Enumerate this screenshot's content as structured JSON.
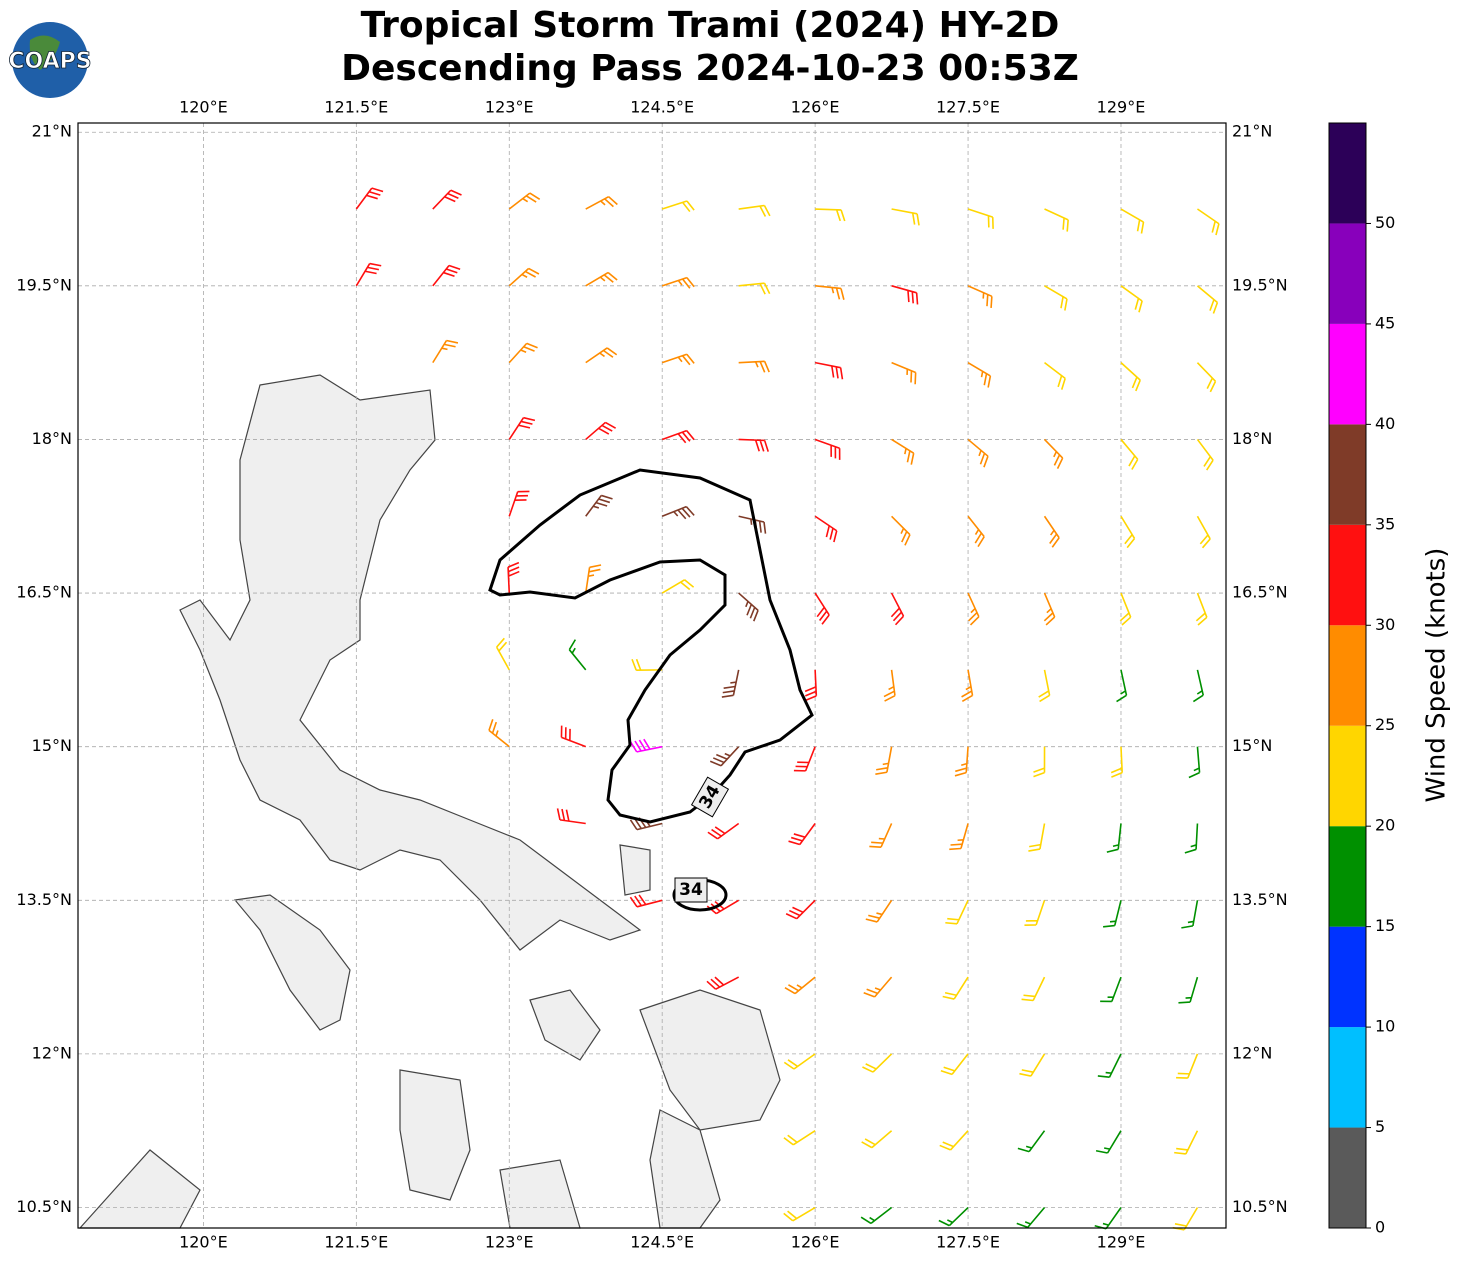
{
  "title": [
    "Tropical Storm Trami (2024) HY-2D",
    "Descending Pass 2024-10-23 00:53Z"
  ],
  "logo": "COAPS",
  "axes": {
    "lon_lim": [
      118.77,
      130.03
    ],
    "lat_lim": [
      10.3,
      21.09
    ],
    "lon_ticks": [
      {
        "value": 120,
        "label": "120°E"
      },
      {
        "value": 121.5,
        "label": "121.5°E"
      },
      {
        "value": 123,
        "label": "123°E"
      },
      {
        "value": 124.5,
        "label": "124.5°E"
      },
      {
        "value": 126,
        "label": "126°E"
      },
      {
        "value": 127.5,
        "label": "127.5°E"
      },
      {
        "value": 129,
        "label": "129°E"
      }
    ],
    "lat_ticks": [
      {
        "value": 10.5,
        "label": "10.5°N"
      },
      {
        "value": 12,
        "label": "12°N"
      },
      {
        "value": 13.5,
        "label": "13.5°N"
      },
      {
        "value": 15,
        "label": "15°N"
      },
      {
        "value": 16.5,
        "label": "16.5°N"
      },
      {
        "value": 18,
        "label": "18°N"
      },
      {
        "value": 19.5,
        "label": "19.5°N"
      },
      {
        "value": 21,
        "label": "21°N"
      }
    ],
    "grid": true
  },
  "colorbar": {
    "label": "Wind Speed (knots)",
    "lim": [
      0,
      55
    ],
    "levels": [
      0,
      5,
      10,
      15,
      20,
      25,
      30,
      35,
      40,
      45,
      50,
      55
    ],
    "colors": [
      "#5a5a5a",
      "#00bfff",
      "#0033ff",
      "#009000",
      "#ffd600",
      "#ff8c00",
      "#ff1010",
      "#7f3b28",
      "#ff00ff",
      "#8800bb",
      "#2c0058"
    ],
    "ticks": [
      0,
      5,
      10,
      15,
      20,
      25,
      30,
      35,
      40,
      45,
      50
    ]
  },
  "contour_labels": [
    34,
    34
  ],
  "wind": {
    "lons": [
      121.5,
      122.25,
      123,
      123.75,
      124.5,
      125.25,
      126,
      126.75,
      127.5,
      128.25,
      129,
      129.75
    ],
    "lats": [
      20.25,
      19.5,
      18.75,
      18.0,
      17.25,
      16.5,
      15.75,
      15.0,
      14.25,
      13.5,
      12.75,
      12.0,
      11.25,
      10.5
    ],
    "speeds": [
      [
        32,
        31,
        28,
        27,
        23,
        22,
        22,
        24,
        22,
        22,
        23,
        22
      ],
      [
        33,
        30,
        28,
        27,
        26,
        24,
        28,
        32,
        26,
        23,
        22,
        22
      ],
      [
        null,
        29,
        28,
        27,
        27,
        28,
        30,
        28,
        26,
        24,
        23,
        22
      ],
      [
        null,
        null,
        30,
        32,
        31,
        31,
        30,
        28,
        27,
        25,
        24,
        22
      ],
      [
        null,
        null,
        34,
        37,
        37,
        36,
        32,
        29,
        27,
        25,
        23,
        22
      ],
      [
        null,
        null,
        33,
        28,
        22,
        38,
        34,
        30,
        27,
        25,
        21,
        20
      ],
      [
        null,
        null,
        24,
        18,
        21,
        38,
        33,
        29,
        26,
        24,
        19,
        18
      ],
      [
        null,
        null,
        27,
        33,
        43,
        37,
        32,
        29,
        26,
        24,
        20,
        18
      ],
      [
        null,
        null,
        null,
        33,
        36,
        34,
        31,
        28,
        25,
        21,
        19,
        18
      ],
      [
        null,
        null,
        null,
        null,
        32,
        32,
        30,
        27,
        24,
        21,
        19,
        18
      ],
      [
        null,
        null,
        null,
        null,
        null,
        31,
        28,
        26,
        24,
        21,
        19,
        19
      ],
      [
        null,
        null,
        null,
        null,
        null,
        null,
        24,
        24,
        23,
        20,
        19,
        20
      ],
      [
        null,
        null,
        null,
        null,
        null,
        null,
        23,
        22,
        21,
        19,
        19,
        21
      ],
      [
        null,
        null,
        null,
        null,
        null,
        null,
        22,
        19,
        17,
        17,
        18,
        20
      ]
    ]
  }
}
